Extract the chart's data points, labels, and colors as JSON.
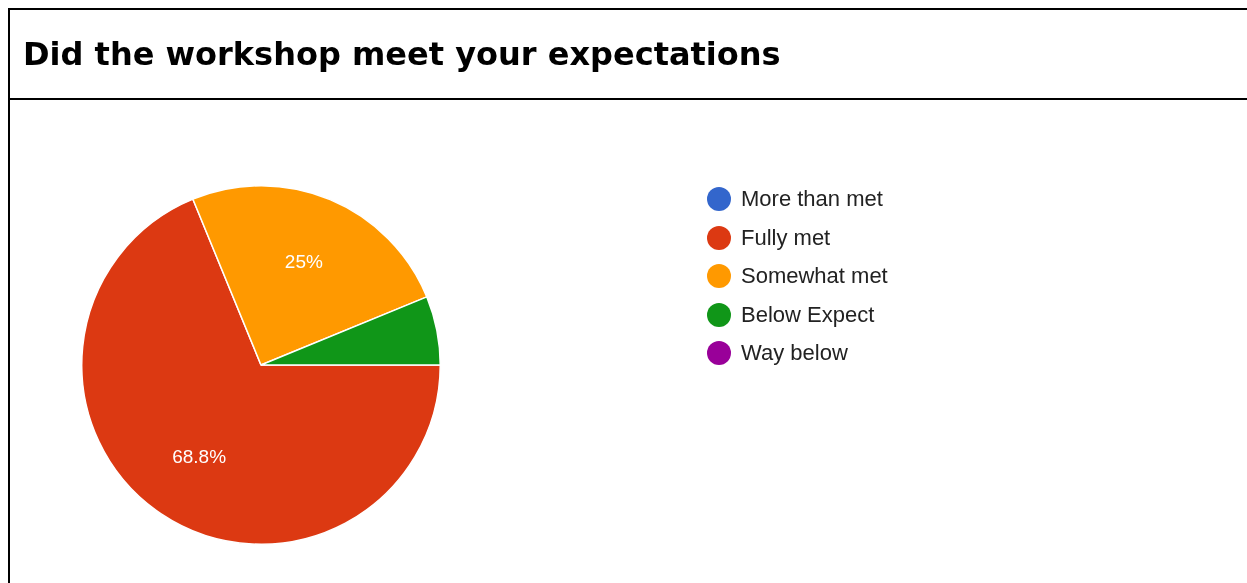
{
  "chart_data": {
    "type": "pie",
    "title": "Did the workshop meet your expectations",
    "categories": [
      "More than met",
      "Fully met",
      "Somewhat met",
      "Below Expect",
      "Way below"
    ],
    "values": [
      0,
      68.8,
      25,
      6.2,
      0
    ],
    "value_labels": [
      null,
      "68.8%",
      "25%",
      null,
      null
    ],
    "colors": [
      "#3366cc",
      "#dc3912",
      "#ff9900",
      "#109618",
      "#990099"
    ],
    "legend": "right"
  }
}
